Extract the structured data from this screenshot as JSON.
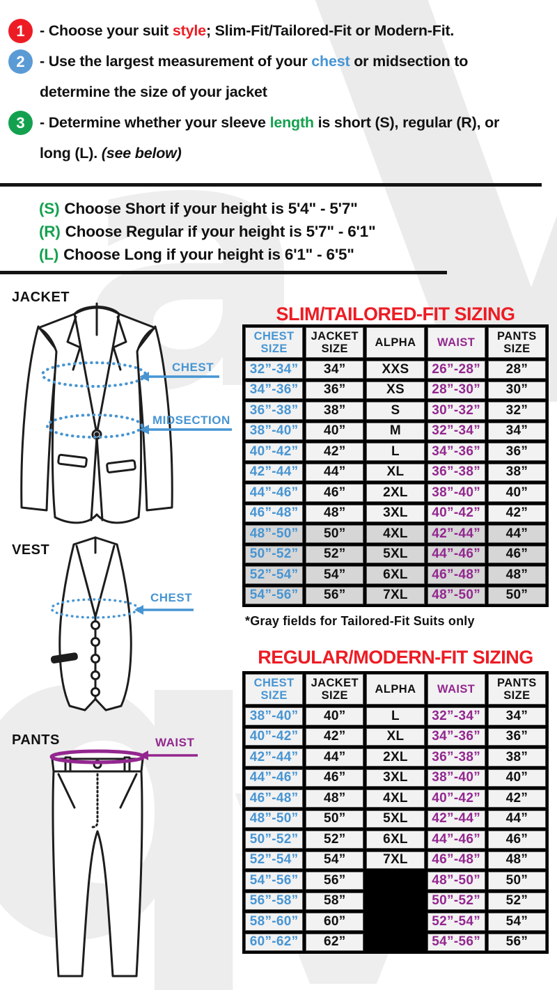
{
  "steps": {
    "s1": {
      "num": "1",
      "pre": "- Choose your suit ",
      "hl": "style",
      "post": "; Slim-Fit/Tailored-Fit or Modern-Fit."
    },
    "s2": {
      "num": "2",
      "pre": "- Use the largest measurement of your ",
      "hl": "chest",
      "post": " or midsection to determine the size of your jacket"
    },
    "s3": {
      "num": "3",
      "pre": "- Determine whether your sleeve ",
      "hl": "length",
      "mid": " is short (S), regular (R), or long (L). ",
      "note": "(see below)"
    }
  },
  "heights": [
    {
      "tag": "(S)",
      "text": "Choose Short if your height is 5'4\" - 5'7\""
    },
    {
      "tag": "(R)",
      "text": "Choose Regular if your height is  5'7\" - 6'1\""
    },
    {
      "tag": "(L)",
      "text": "Choose Long if your height is  6'1\" - 6'5\""
    }
  ],
  "diagrams": {
    "jacket": {
      "label": "JACKET",
      "chest": "CHEST",
      "midsection": "MIDSECTION"
    },
    "vest": {
      "label": "VEST",
      "chest": "CHEST"
    },
    "pants": {
      "label": "PANTS",
      "waist": "WAIST"
    }
  },
  "slim_table": {
    "title": "SLIM/TAILORED-FIT SIZING",
    "headers": [
      "CHEST SIZE",
      "JACKET SIZE",
      "ALPHA",
      "WAIST",
      "PANTS SIZE"
    ],
    "col_colors": [
      "blue",
      "black",
      "black",
      "purple",
      "black"
    ],
    "rows": [
      [
        "32”-34”",
        "34”",
        "XXS",
        "26”-28”",
        "28”"
      ],
      [
        "34”-36”",
        "36”",
        "XS",
        "28”-30”",
        "30”"
      ],
      [
        "36”-38”",
        "38”",
        "S",
        "30”-32”",
        "32”"
      ],
      [
        "38”-40”",
        "40”",
        "M",
        "32”-34”",
        "34”"
      ],
      [
        "40”-42”",
        "42”",
        "L",
        "34”-36”",
        "36”"
      ],
      [
        "42”-44”",
        "44”",
        "XL",
        "36”-38”",
        "38”"
      ],
      [
        "44”-46”",
        "46”",
        "2XL",
        "38”-40”",
        "40”"
      ],
      [
        "46”-48”",
        "48”",
        "3XL",
        "40”-42”",
        "42”"
      ],
      [
        "48”-50”",
        "50”",
        "4XL",
        "42”-44”",
        "44”"
      ],
      [
        "50”-52”",
        "52”",
        "5XL",
        "44”-46”",
        "46”"
      ],
      [
        "52”-54”",
        "54”",
        "6XL",
        "46”-48”",
        "48”"
      ],
      [
        "54”-56”",
        "56”",
        "7XL",
        "48”-50”",
        "50”"
      ]
    ],
    "gray_rows": [
      8,
      9,
      10,
      11
    ],
    "footnote": "*Gray fields for Tailored-Fit Suits only"
  },
  "regular_table": {
    "title": "REGULAR/MODERN-FIT SIZING",
    "headers": [
      "CHEST SIZE",
      "JACKET SIZE",
      "ALPHA",
      "WAIST",
      "PANTS SIZE"
    ],
    "col_colors": [
      "blue",
      "black",
      "black",
      "purple",
      "black"
    ],
    "rows": [
      [
        "38”-40”",
        "40”",
        "L",
        "32”-34”",
        "34”"
      ],
      [
        "40”-42”",
        "42”",
        "XL",
        "34”-36”",
        "36”"
      ],
      [
        "42”-44”",
        "44”",
        "2XL",
        "36”-38”",
        "38”"
      ],
      [
        "44”-46”",
        "46”",
        "3XL",
        "38”-40”",
        "40”"
      ],
      [
        "46”-48”",
        "48”",
        "4XL",
        "40”-42”",
        "42”"
      ],
      [
        "48”-50”",
        "50”",
        "5XL",
        "42”-44”",
        "44”"
      ],
      [
        "50”-52”",
        "52”",
        "6XL",
        "44”-46”",
        "46”"
      ],
      [
        "52”-54”",
        "54”",
        "7XL",
        "46”-48”",
        "48”"
      ],
      [
        "54”-56”",
        "56”",
        null,
        "48”-50”",
        "50”"
      ],
      [
        "56”-58”",
        "58”",
        null,
        "50”-52”",
        "52”"
      ],
      [
        "58”-60”",
        "60”",
        null,
        "52”-54”",
        "54”"
      ],
      [
        "60”-62”",
        "62”",
        null,
        "54”-56”",
        "56”"
      ]
    ],
    "gray_rows": []
  },
  "watermark": {
    "glyphs": [
      "V",
      "a",
      "q",
      "v"
    ]
  },
  "colors": {
    "red": "#ed1c24",
    "blue": "#4795d3",
    "purple": "#93278f",
    "green": "#14a14f",
    "gray_cell": "#d6d6d6"
  }
}
